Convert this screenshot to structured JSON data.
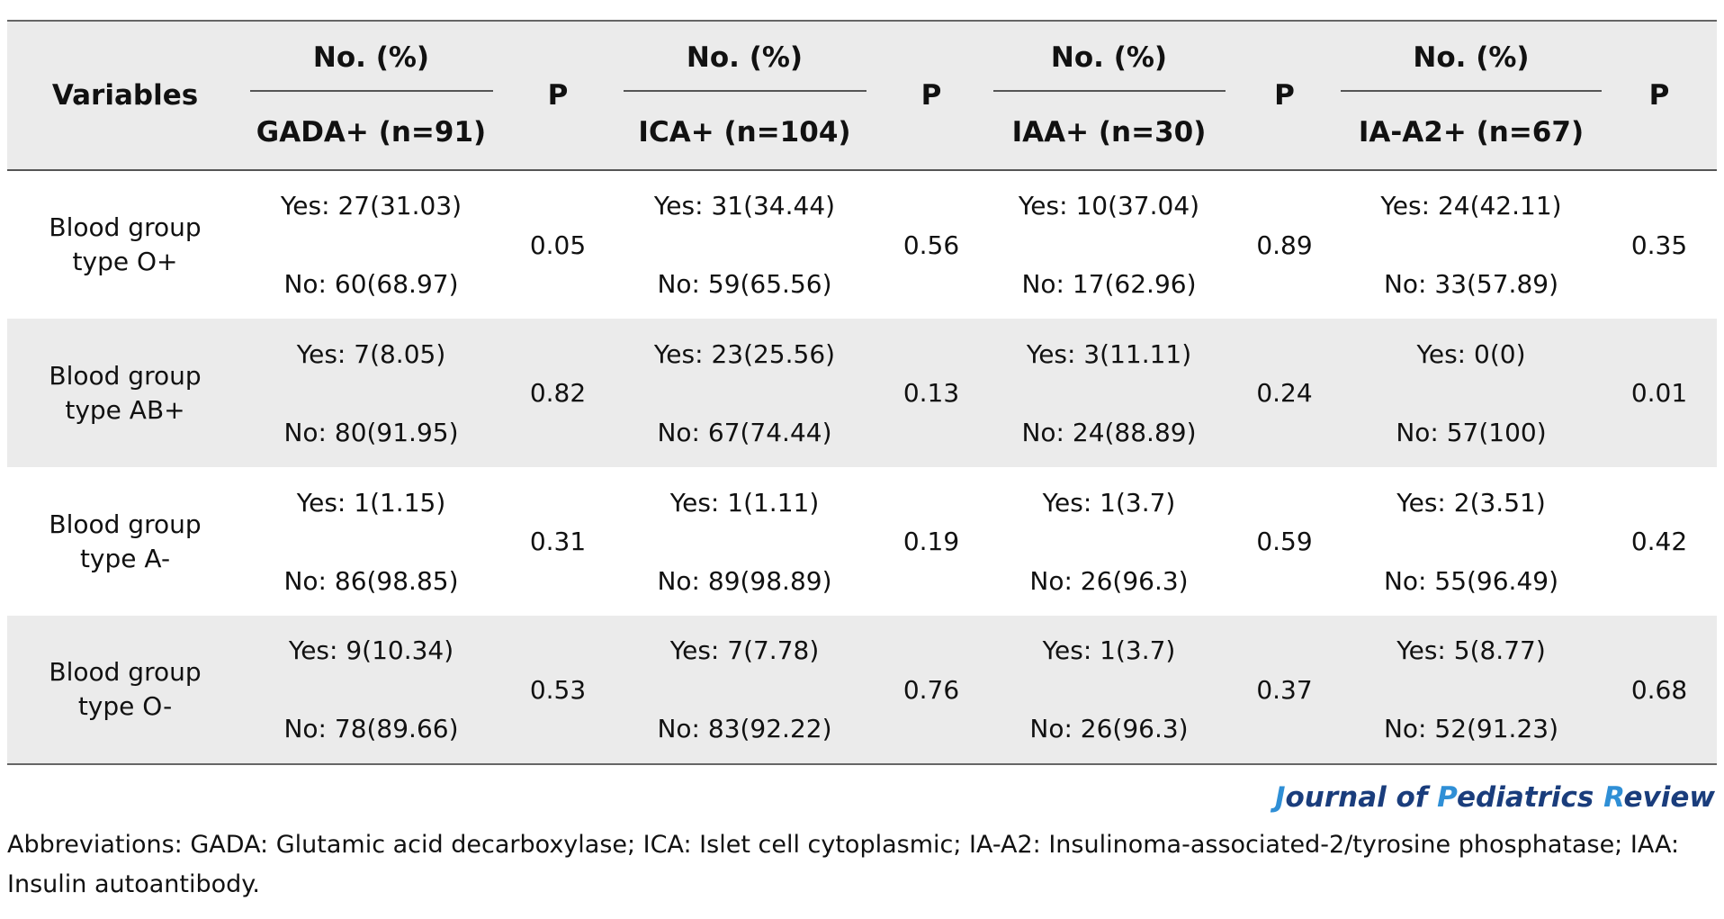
{
  "table": {
    "header": {
      "variables": "Variables",
      "no_pct": "No. (%)",
      "p": "P",
      "groups": [
        "GADA+ (n=91)",
        "ICA+ (n=104)",
        "IAA+ (n=30)",
        "IA-A2+ (n=67)"
      ]
    },
    "rows": [
      {
        "variable_line1": "Blood group",
        "variable_line2": "type O+",
        "cells": [
          {
            "yes": "Yes: 27(31.03)",
            "no": "No: 60(68.97)",
            "p": "0.05"
          },
          {
            "yes": "Yes: 31(34.44)",
            "no": "No: 59(65.56)",
            "p": "0.56"
          },
          {
            "yes": "Yes: 10(37.04)",
            "no": "No: 17(62.96)",
            "p": "0.89"
          },
          {
            "yes": "Yes: 24(42.11)",
            "no": "No: 33(57.89)",
            "p": "0.35"
          }
        ]
      },
      {
        "variable_line1": "Blood group",
        "variable_line2": "type AB+",
        "cells": [
          {
            "yes": "Yes: 7(8.05)",
            "no": "No: 80(91.95)",
            "p": "0.82"
          },
          {
            "yes": "Yes: 23(25.56)",
            "no": "No: 67(74.44)",
            "p": "0.13"
          },
          {
            "yes": "Yes: 3(11.11)",
            "no": "No: 24(88.89)",
            "p": "0.24"
          },
          {
            "yes": "Yes: 0(0)",
            "no": "No: 57(100)",
            "p": "0.01"
          }
        ]
      },
      {
        "variable_line1": "Blood group",
        "variable_line2": "type A-",
        "cells": [
          {
            "yes": "Yes: 1(1.15)",
            "no": "No: 86(98.85)",
            "p": "0.31"
          },
          {
            "yes": "Yes: 1(1.11)",
            "no": "No: 89(98.89)",
            "p": "0.19"
          },
          {
            "yes": "Yes: 1(3.7)",
            "no": "No: 26(96.3)",
            "p": "0.59"
          },
          {
            "yes": "Yes: 2(3.51)",
            "no": "No: 55(96.49)",
            "p": "0.42"
          }
        ]
      },
      {
        "variable_line1": "Blood group",
        "variable_line2": "type O-",
        "cells": [
          {
            "yes": "Yes: 9(10.34)",
            "no": "No: 78(89.66)",
            "p": "0.53"
          },
          {
            "yes": "Yes: 7(7.78)",
            "no": "No: 83(92.22)",
            "p": "0.76"
          },
          {
            "yes": "Yes: 1(3.7)",
            "no": "No: 26(96.3)",
            "p": "0.37"
          },
          {
            "yes": "Yes: 5(8.77)",
            "no": "No: 52(91.23)",
            "p": "0.68"
          }
        ]
      }
    ]
  },
  "journal": {
    "parts": [
      "J",
      "ournal of ",
      "P",
      "ediatrics ",
      "R",
      "eview"
    ]
  },
  "footnote": "Abbreviations: GADA: Glutamic acid decarboxylase; ICA: Islet cell cytoplasmic; IA-A2: Insulinoma-associated-2/tyrosine phosphatase; IAA: Insulin autoantibody.",
  "colors": {
    "header_bg": "#ebebeb",
    "journal_text": "#1a3d7c",
    "journal_caps": "#2f8fd6"
  }
}
